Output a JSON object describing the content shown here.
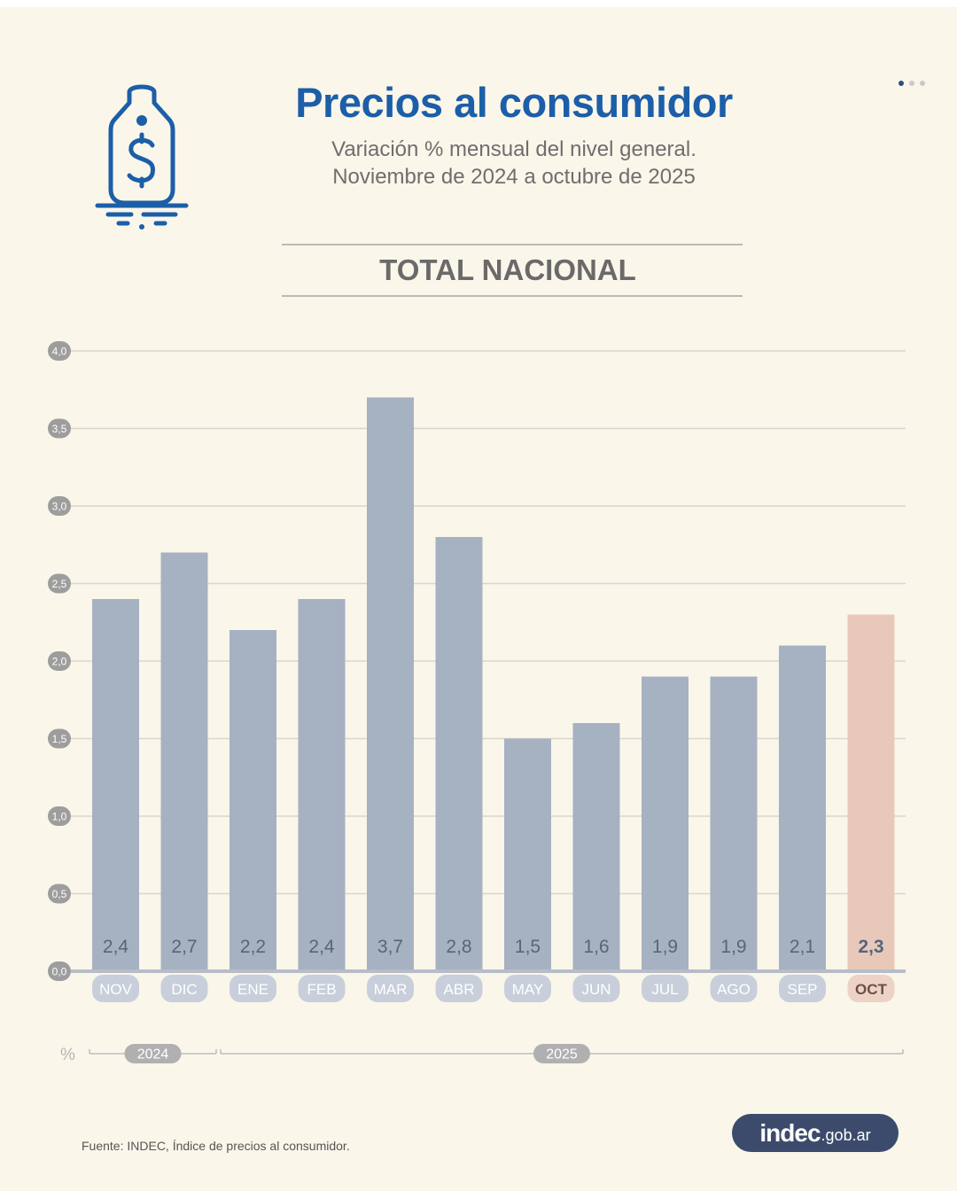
{
  "header": {
    "title": "Precios al consumidor",
    "subtitle_line1": "Variación % mensual del nivel general.",
    "subtitle_line2": "Noviembre de 2024 a octubre de 2025",
    "section_title": "TOTAL NACIONAL",
    "icon": "price-tag-dollar-icon"
  },
  "pager": {
    "count": 3,
    "active_index": 0
  },
  "chart_data": {
    "type": "bar",
    "title": "Precios al consumidor",
    "subtitle": "Variación % mensual del nivel general. Noviembre de 2024 a octubre de 2025",
    "categories": [
      "NOV",
      "DIC",
      "ENE",
      "FEB",
      "MAR",
      "ABR",
      "MAY",
      "JUN",
      "JUL",
      "AGO",
      "SEP",
      "OCT"
    ],
    "values": [
      2.4,
      2.7,
      2.2,
      2.4,
      3.7,
      2.8,
      1.5,
      1.6,
      1.9,
      1.9,
      2.1,
      2.3
    ],
    "value_labels": [
      "2,4",
      "2,7",
      "2,2",
      "2,4",
      "3,7",
      "2,8",
      "1,5",
      "1,6",
      "1,9",
      "1,9",
      "2,1",
      "2,3"
    ],
    "highlight_index": 11,
    "ylim": [
      0,
      4
    ],
    "yticks": [
      0,
      0.5,
      1,
      1.5,
      2,
      2.5,
      3,
      3.5,
      4
    ],
    "ytick_labels": [
      "0,0",
      "0,5",
      "1,0",
      "1,5",
      "2,0",
      "2,5",
      "3,0",
      "3,5",
      "4,0"
    ],
    "ylabel": "%",
    "xlabel": "",
    "grid": true,
    "year_groups": [
      {
        "label": "2024",
        "start_index": 0,
        "end_index": 1
      },
      {
        "label": "2025",
        "start_index": 2,
        "end_index": 11
      }
    ],
    "colors": {
      "bar": "#a6b1c1",
      "bar_highlight": "#e8c9b9",
      "month_pill": "#c8cfdb",
      "month_pill_highlight": "#ecd3c6",
      "month_text_highlight": "#6e4e48",
      "value_text": "#5a6578",
      "value_text_highlight": "#556581",
      "tick_badge": "#9d9d9d",
      "gridline": "#d9d6cd",
      "baseline": "#b7bdc8",
      "year_badge": "#b0b0b0"
    }
  },
  "footer": {
    "unit_label": "%",
    "source": "Fuente: INDEC, Índice de precios al consumidor.",
    "brand_main": "indec",
    "brand_suffix": ".gob.ar"
  }
}
